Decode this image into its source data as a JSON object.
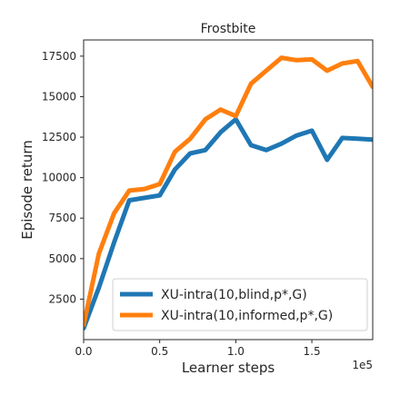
{
  "chart_data": {
    "type": "line",
    "title": "Frostbite",
    "xlabel": "Learner steps",
    "ylabel": "Episode return",
    "x_multiplier_label": "1e5",
    "xlim": [
      0,
      1.9
    ],
    "ylim": [
      0,
      18500
    ],
    "x_ticks": [
      0.0,
      0.5,
      1.0,
      1.5
    ],
    "x_tick_labels": [
      "0.0",
      "0.5",
      "1.0",
      "1.5"
    ],
    "y_ticks": [
      2500,
      5000,
      7500,
      10000,
      12500,
      15000,
      17500
    ],
    "y_tick_labels": [
      "2500",
      "5000",
      "7500",
      "10000",
      "12500",
      "15000",
      "17500"
    ],
    "grid": false,
    "legend_position": "lower-right",
    "series": [
      {
        "name": "XU-intra(10,blind,p*,G)",
        "color": "#1f77b4",
        "x": [
          0,
          0.1,
          0.2,
          0.3,
          0.4,
          0.5,
          0.6,
          0.7,
          0.8,
          0.9,
          1.0,
          1.1,
          1.2,
          1.3,
          1.4,
          1.5,
          1.6,
          1.7,
          1.8,
          1.9
        ],
        "y": [
          700,
          3200,
          6000,
          8600,
          8750,
          8900,
          10500,
          11500,
          11700,
          12800,
          13600,
          12000,
          11700,
          12100,
          12600,
          12900,
          11100,
          12450,
          12400,
          12350
        ]
      },
      {
        "name": "XU-intra(10,informed,p*,G)",
        "color": "#ff7f0e",
        "x": [
          0,
          0.1,
          0.2,
          0.3,
          0.4,
          0.5,
          0.6,
          0.7,
          0.8,
          0.9,
          1.0,
          1.1,
          1.2,
          1.3,
          1.4,
          1.5,
          1.6,
          1.7,
          1.8,
          1.9
        ],
        "y": [
          900,
          5300,
          7800,
          9200,
          9300,
          9600,
          11600,
          12400,
          13600,
          14200,
          13800,
          15800,
          16600,
          17400,
          17250,
          17300,
          16600,
          17050,
          17200,
          15600
        ]
      }
    ]
  }
}
